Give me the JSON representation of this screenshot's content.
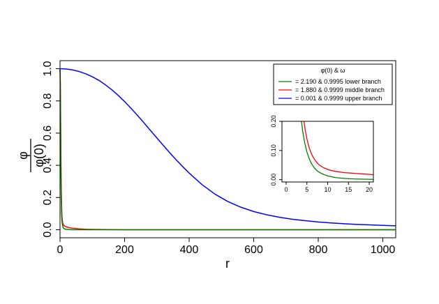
{
  "chart_data": [
    {
      "type": "line",
      "role": "main",
      "xlabel": "r",
      "ylabel_numerator": "φ",
      "ylabel_denominator": "φ(0)",
      "xlim": [
        0,
        1040
      ],
      "ylim": [
        -0.05,
        1.05
      ],
      "xticks": [
        0,
        200,
        400,
        600,
        800,
        1000
      ],
      "xtick_labels": [
        "0",
        "200",
        "400",
        "600",
        "800",
        "1000"
      ],
      "yticks": [
        0.0,
        0.2,
        0.4,
        0.6,
        0.8,
        1.0
      ],
      "ytick_labels": [
        "0.0",
        "0.2",
        "0.4",
        "0.6",
        "0.8",
        "1.0"
      ],
      "grid": false,
      "legend": {
        "title": "φ(0) & ω",
        "placement": "top-right",
        "entries": [
          {
            "label": "= 2.190 & 0.9995 lower branch",
            "color": "#008000"
          },
          {
            "label": "= 1.880 & 0.9999 middle branch",
            "color": "#ff0000"
          },
          {
            "label": "= 0.001 & 0.9999 upper branch",
            "color": "#0000ff"
          }
        ]
      },
      "series": [
        {
          "color": "#0000ff",
          "x": [
            0,
            20,
            40,
            60,
            80,
            100,
            120,
            140,
            160,
            180,
            200,
            220,
            240,
            260,
            280,
            300,
            320,
            340,
            360,
            380,
            400,
            440,
            480,
            520,
            560,
            600,
            640,
            680,
            720,
            760,
            800,
            840,
            880,
            920,
            960,
            1000,
            1040
          ],
          "y": [
            1.0,
            0.998,
            0.992,
            0.982,
            0.968,
            0.95,
            0.928,
            0.901,
            0.87,
            0.835,
            0.796,
            0.754,
            0.71,
            0.664,
            0.617,
            0.57,
            0.524,
            0.478,
            0.434,
            0.392,
            0.352,
            0.28,
            0.221,
            0.175,
            0.14,
            0.113,
            0.093,
            0.077,
            0.065,
            0.056,
            0.048,
            0.042,
            0.037,
            0.033,
            0.03,
            0.027,
            0.024
          ]
        },
        {
          "color": "#ff0000",
          "x": [
            0,
            1,
            2,
            3,
            4,
            5,
            6,
            8,
            10,
            12,
            15,
            20,
            30,
            40,
            60,
            80,
            100,
            150,
            200,
            400,
            600,
            800,
            1040
          ],
          "y": [
            1.0,
            0.92,
            0.68,
            0.42,
            0.24,
            0.14,
            0.085,
            0.045,
            0.032,
            0.026,
            0.022,
            0.017,
            0.012,
            0.009,
            0.005,
            0.003,
            0.002,
            0.001,
            0.0,
            0.0,
            0.0,
            0.0,
            0.0
          ]
        },
        {
          "color": "#008000",
          "x": [
            0,
            1,
            2,
            3,
            4,
            5,
            6,
            8,
            10,
            12,
            15,
            20,
            30,
            40,
            60,
            80,
            100,
            150,
            200,
            400,
            600,
            800,
            1040
          ],
          "y": [
            1.0,
            0.88,
            0.55,
            0.3,
            0.16,
            0.09,
            0.055,
            0.025,
            0.013,
            0.008,
            0.004,
            0.002,
            0.001,
            0.0,
            0.0,
            0.0,
            0.0,
            0.0,
            0.0,
            0.0,
            0.0,
            0.0,
            0.0
          ]
        }
      ]
    },
    {
      "type": "line",
      "role": "inset",
      "xlim": [
        -1,
        21
      ],
      "ylim": [
        -0.008,
        0.2
      ],
      "xticks": [
        0,
        5,
        10,
        15,
        20
      ],
      "xtick_labels": [
        "0",
        "5",
        "10",
        "15",
        "20"
      ],
      "yticks": [
        0.0,
        0.1,
        0.2
      ],
      "ytick_labels": [
        "0.00",
        "0.10",
        "0.20"
      ],
      "grid": false,
      "series": [
        {
          "color": "#ff0000",
          "x": [
            4.3,
            4.6,
            5,
            5.5,
            6,
            6.5,
            7,
            7.5,
            8,
            9,
            10,
            11,
            12,
            13,
            14,
            15,
            16,
            17,
            18,
            19,
            20,
            21
          ],
          "y": [
            0.2,
            0.17,
            0.14,
            0.112,
            0.092,
            0.077,
            0.066,
            0.057,
            0.05,
            0.041,
            0.035,
            0.031,
            0.028,
            0.026,
            0.024,
            0.023,
            0.022,
            0.021,
            0.02,
            0.019,
            0.018,
            0.017
          ]
        },
        {
          "color": "#008000",
          "x": [
            3.7,
            4,
            4.5,
            5,
            5.5,
            6,
            6.5,
            7,
            7.5,
            8,
            9,
            10,
            11,
            12,
            13,
            14,
            15,
            16,
            17,
            18,
            19,
            20,
            21
          ],
          "y": [
            0.2,
            0.165,
            0.125,
            0.095,
            0.074,
            0.058,
            0.046,
            0.037,
            0.03,
            0.025,
            0.018,
            0.013,
            0.0095,
            0.007,
            0.0055,
            0.0043,
            0.0034,
            0.0027,
            0.0022,
            0.0018,
            0.0015,
            0.0012,
            0.001
          ]
        }
      ]
    }
  ]
}
